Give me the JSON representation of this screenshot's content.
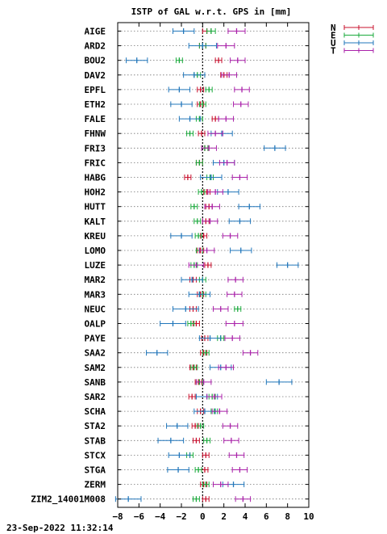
{
  "footer": {
    "timestamp": "23-Sep-2022 11:32:14"
  },
  "chart_data": {
    "type": "scatter",
    "title": "ISTP of GAL w.r.t. GPS in [mm]",
    "xlabel": "",
    "ylabel": "",
    "xlim": [
      -8,
      10
    ],
    "xticks": [
      -8,
      -6,
      -4,
      -2,
      0,
      2,
      4,
      6,
      8,
      10
    ],
    "grid": "horizontal dotted",
    "zero_line": "vertical dotted at x=0",
    "legend_position": "top-right outside plot",
    "colors": {
      "N": "#c8102e",
      "E": "#1aaa3c",
      "U": "#2277bb",
      "T": "#aa22aa"
    },
    "series": [
      {
        "name": "N",
        "key": "N"
      },
      {
        "name": "E",
        "key": "E"
      },
      {
        "name": "U",
        "key": "U"
      },
      {
        "name": "T",
        "key": "T"
      }
    ],
    "stations": [
      {
        "name": "AIGE",
        "N": [
          0.4,
          0.4
        ],
        "E": [
          0.8,
          0.4
        ],
        "U": [
          -1.8,
          1.0
        ],
        "T": [
          3.2,
          0.8
        ]
      },
      {
        "name": "ARD2",
        "N": [
          0.0,
          0.3
        ],
        "E": [
          0.0,
          0.3
        ],
        "U": [
          0.0,
          1.3
        ],
        "T": [
          2.2,
          0.8
        ]
      },
      {
        "name": "BOU2",
        "N": [
          1.5,
          0.3
        ],
        "E": [
          -2.2,
          0.3
        ],
        "U": [
          -6.2,
          1.0
        ],
        "T": [
          3.3,
          0.7
        ]
      },
      {
        "name": "DAV2",
        "N": [
          2.0,
          0.3
        ],
        "E": [
          -0.5,
          0.3
        ],
        "U": [
          -0.8,
          1.0
        ],
        "T": [
          2.5,
          0.7
        ]
      },
      {
        "name": "EPFL",
        "N": [
          -0.2,
          0.3
        ],
        "E": [
          0.6,
          0.3
        ],
        "U": [
          -2.2,
          1.0
        ],
        "T": [
          3.7,
          0.7
        ]
      },
      {
        "name": "ETH2",
        "N": [
          -0.2,
          0.3
        ],
        "E": [
          0.0,
          0.3
        ],
        "U": [
          -2.0,
          1.0
        ],
        "T": [
          3.6,
          0.7
        ]
      },
      {
        "name": "FALE",
        "N": [
          1.2,
          0.3
        ],
        "E": [
          -0.3,
          0.3
        ],
        "U": [
          -1.2,
          1.0
        ],
        "T": [
          2.2,
          0.7
        ]
      },
      {
        "name": "FHNW",
        "N": [
          -0.1,
          0.3
        ],
        "E": [
          -1.2,
          0.3
        ],
        "U": [
          1.8,
          1.0
        ],
        "T": [
          1.2,
          0.7
        ]
      },
      {
        "name": "FRI3",
        "N": [
          0.2,
          0.3
        ],
        "E": [
          0.2,
          0.3
        ],
        "U": [
          6.8,
          1.0
        ],
        "T": [
          0.6,
          0.7
        ]
      },
      {
        "name": "FRIC",
        "N": [
          -0.3,
          0.3
        ],
        "E": [
          -0.3,
          0.3
        ],
        "U": [
          2.0,
          1.0
        ],
        "T": [
          2.3,
          0.7
        ]
      },
      {
        "name": "HABG",
        "N": [
          -1.4,
          0.3
        ],
        "E": [
          0.7,
          0.3
        ],
        "U": [
          0.8,
          1.0
        ],
        "T": [
          3.5,
          0.7
        ]
      },
      {
        "name": "HOH2",
        "N": [
          0.4,
          0.3
        ],
        "E": [
          -0.1,
          0.3
        ],
        "U": [
          2.4,
          1.0
        ],
        "T": [
          1.2,
          0.7
        ]
      },
      {
        "name": "HUTT",
        "N": [
          0.6,
          0.3
        ],
        "E": [
          -0.8,
          0.3
        ],
        "U": [
          4.4,
          1.0
        ],
        "T": [
          0.9,
          0.7
        ]
      },
      {
        "name": "KALT",
        "N": [
          0.3,
          0.3
        ],
        "E": [
          -0.5,
          0.3
        ],
        "U": [
          3.5,
          1.0
        ],
        "T": [
          0.7,
          0.7
        ]
      },
      {
        "name": "KREU",
        "N": [
          0.1,
          0.3
        ],
        "E": [
          -0.4,
          0.3
        ],
        "U": [
          -2.0,
          1.0
        ],
        "T": [
          2.6,
          0.7
        ]
      },
      {
        "name": "LOMO",
        "N": [
          -0.2,
          0.3
        ],
        "E": [
          -0.3,
          0.3
        ],
        "U": [
          3.6,
          1.0
        ],
        "T": [
          0.4,
          0.7
        ]
      },
      {
        "name": "LUZE",
        "N": [
          0.5,
          0.3
        ],
        "E": [
          -0.8,
          0.3
        ],
        "U": [
          8.0,
          1.0
        ],
        "T": [
          -0.6,
          0.7
        ]
      },
      {
        "name": "MAR2",
        "N": [
          -0.9,
          0.3
        ],
        "E": [
          0.0,
          0.3
        ],
        "U": [
          -1.0,
          1.0
        ],
        "T": [
          3.1,
          0.7
        ]
      },
      {
        "name": "MAR3",
        "N": [
          -0.2,
          0.3
        ],
        "E": [
          0.0,
          0.3
        ],
        "U": [
          -0.3,
          1.0
        ],
        "T": [
          3.0,
          0.7
        ]
      },
      {
        "name": "NEUC",
        "N": [
          -0.9,
          0.3
        ],
        "E": [
          3.3,
          0.3
        ],
        "U": [
          -1.6,
          1.2
        ],
        "T": [
          1.7,
          0.7
        ]
      },
      {
        "name": "OALP",
        "N": [
          -0.6,
          0.3
        ],
        "E": [
          -1.1,
          0.3
        ],
        "U": [
          -2.8,
          1.2
        ],
        "T": [
          3.0,
          0.8
        ]
      },
      {
        "name": "PAYE",
        "N": [
          0.2,
          0.3
        ],
        "E": [
          1.7,
          0.3
        ],
        "U": [
          0.7,
          1.0
        ],
        "T": [
          2.8,
          0.7
        ]
      },
      {
        "name": "SAA2",
        "N": [
          0.1,
          0.3
        ],
        "E": [
          0.3,
          0.3
        ],
        "U": [
          -4.3,
          1.0
        ],
        "T": [
          4.5,
          0.7
        ]
      },
      {
        "name": "SAM2",
        "N": [
          -0.9,
          0.3
        ],
        "E": [
          -0.8,
          0.3
        ],
        "U": [
          1.7,
          1.0
        ],
        "T": [
          2.2,
          0.7
        ]
      },
      {
        "name": "SANB",
        "N": [
          -0.4,
          0.3
        ],
        "E": [
          -0.3,
          0.3
        ],
        "U": [
          7.2,
          1.2
        ],
        "T": [
          0.1,
          0.7
        ]
      },
      {
        "name": "SAR2",
        "N": [
          -1.0,
          0.3
        ],
        "E": [
          0.9,
          0.3
        ],
        "U": [
          0.4,
          1.0
        ],
        "T": [
          1.1,
          0.7
        ]
      },
      {
        "name": "SCHA",
        "N": [
          -0.2,
          0.3
        ],
        "E": [
          1.1,
          0.3
        ],
        "U": [
          0.2,
          1.0
        ],
        "T": [
          1.6,
          0.7
        ]
      },
      {
        "name": "STA2",
        "N": [
          -0.7,
          0.3
        ],
        "E": [
          -0.2,
          0.3
        ],
        "U": [
          -2.4,
          1.0
        ],
        "T": [
          2.6,
          0.7
        ]
      },
      {
        "name": "STAB",
        "N": [
          -0.6,
          0.3
        ],
        "E": [
          0.4,
          0.3
        ],
        "U": [
          -3.0,
          1.2
        ],
        "T": [
          2.7,
          0.7
        ]
      },
      {
        "name": "STCX",
        "N": [
          0.3,
          0.3
        ],
        "E": [
          -1.2,
          0.3
        ],
        "U": [
          -2.2,
          1.0
        ],
        "T": [
          3.2,
          0.7
        ]
      },
      {
        "name": "STGA",
        "N": [
          0.2,
          0.3
        ],
        "E": [
          -0.4,
          0.3
        ],
        "U": [
          -2.3,
          1.0
        ],
        "T": [
          3.5,
          0.7
        ]
      },
      {
        "name": "ZERM",
        "N": [
          0.1,
          0.3
        ],
        "E": [
          0.3,
          0.3
        ],
        "U": [
          2.9,
          1.0
        ],
        "T": [
          1.7,
          0.7
        ]
      },
      {
        "name": "ZIM2_14001M008",
        "N": [
          0.3,
          0.3
        ],
        "E": [
          -0.6,
          0.3
        ],
        "U": [
          -7.0,
          1.2
        ],
        "T": [
          3.8,
          0.7
        ]
      }
    ]
  }
}
